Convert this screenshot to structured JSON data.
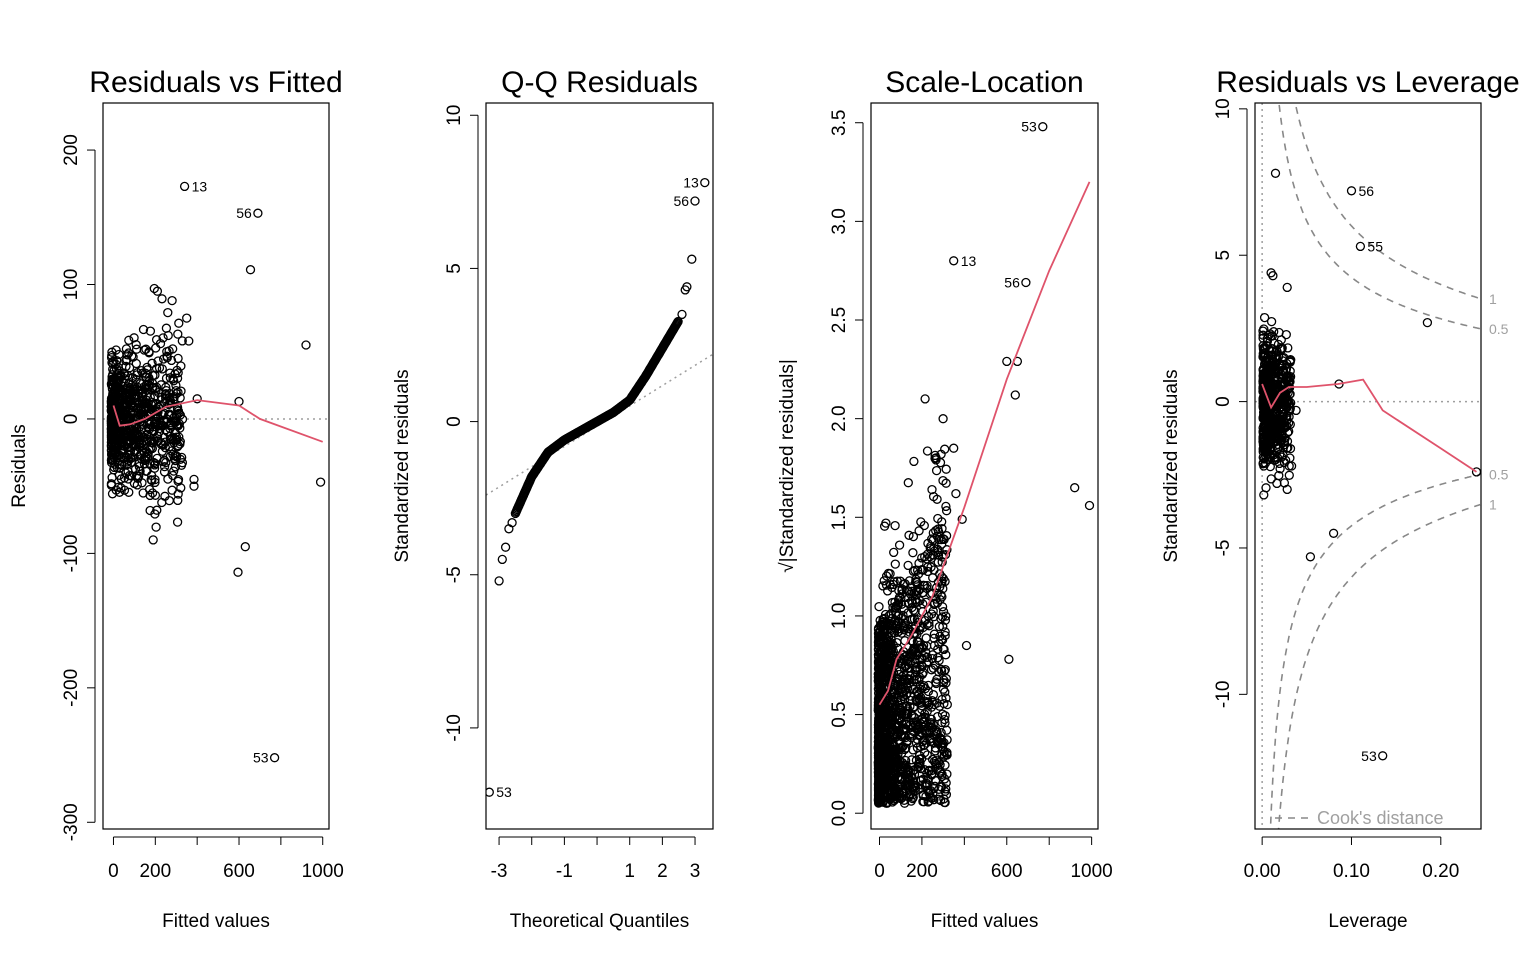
{
  "colors": {
    "points": "#000000",
    "smoother": "#DF536B",
    "reference": "#9E9E9E",
    "frame": "#000000"
  },
  "chart_data": [
    {
      "type": "scatter",
      "title": "Residuals vs Fitted",
      "xlabel": "Fitted values",
      "ylabel": "Residuals",
      "xlim": [
        -50,
        1030
      ],
      "ylim": [
        -305,
        235
      ],
      "xticks": [
        0,
        200,
        600,
        1000
      ],
      "yticks": [
        -300,
        -200,
        -100,
        0,
        100,
        200
      ],
      "reference_line": {
        "y": 0,
        "style": "dotted"
      },
      "labeled_points": [
        {
          "label": "13",
          "x": 340,
          "y": 173
        },
        {
          "label": "56",
          "x": 690,
          "y": 153
        },
        {
          "label": "53",
          "x": 770,
          "y": -252
        }
      ],
      "other_points": [
        {
          "x": 655,
          "y": 111
        },
        {
          "x": 920,
          "y": 55
        },
        {
          "x": 600,
          "y": 13
        },
        {
          "x": 990,
          "y": -47
        },
        {
          "x": 630,
          "y": -95
        },
        {
          "x": 595,
          "y": -114
        },
        {
          "x": 400,
          "y": 15
        },
        {
          "x": 385,
          "y": -45
        },
        {
          "x": 385,
          "y": -50
        },
        {
          "x": 350,
          "y": 75
        },
        {
          "x": 360,
          "y": 58
        },
        {
          "x": 280,
          "y": 88
        },
        {
          "x": 320,
          "y": -30
        },
        {
          "x": 310,
          "y": -5
        },
        {
          "x": 190,
          "y": -90
        },
        {
          "x": 210,
          "y": 95
        },
        {
          "x": 195,
          "y": 97
        }
      ],
      "cluster": {
        "x_range": [
          -10,
          330
        ],
        "y_range": [
          -90,
          100
        ],
        "count": 800
      },
      "smoother": [
        [
          0,
          10
        ],
        [
          30,
          -5
        ],
        [
          80,
          -4
        ],
        [
          150,
          0
        ],
        [
          250,
          9
        ],
        [
          400,
          14
        ],
        [
          600,
          10
        ],
        [
          700,
          0
        ],
        [
          1000,
          -17
        ]
      ]
    },
    {
      "type": "scatter",
      "title": "Q-Q Residuals",
      "xlabel": "Theoretical Quantiles",
      "ylabel": "Standardized residuals",
      "xlim": [
        -3.4,
        3.55
      ],
      "ylim": [
        -13.3,
        10.4
      ],
      "xticks": [
        -3,
        -1,
        1,
        2,
        3
      ],
      "yticks": [
        -10,
        -5,
        0,
        5,
        10
      ],
      "reference_line": {
        "points": [
          [
            -3.4,
            -2.4
          ],
          [
            3.55,
            2.2
          ]
        ],
        "style": "dotted"
      },
      "labeled_points": [
        {
          "label": "13",
          "x": 3.3,
          "y": 7.8
        },
        {
          "label": "56",
          "x": 3.0,
          "y": 7.2
        },
        {
          "label": "53",
          "x": -3.3,
          "y": -12.1
        }
      ],
      "other_points": [
        {
          "x": 2.9,
          "y": 5.3
        },
        {
          "x": 2.75,
          "y": 4.4
        },
        {
          "x": 2.7,
          "y": 4.3
        },
        {
          "x": 2.6,
          "y": 3.5
        },
        {
          "x": -3.0,
          "y": -5.2
        },
        {
          "x": -2.9,
          "y": -4.5
        },
        {
          "x": -2.8,
          "y": -4.1
        },
        {
          "x": -2.7,
          "y": -3.5
        },
        {
          "x": -2.6,
          "y": -3.3
        }
      ],
      "curve": [
        [
          -2.5,
          -3.0
        ],
        [
          -2.0,
          -1.8
        ],
        [
          -1.5,
          -1.0
        ],
        [
          -1.0,
          -0.6
        ],
        [
          -0.5,
          -0.3
        ],
        [
          0,
          0
        ],
        [
          0.5,
          0.3
        ],
        [
          1.0,
          0.7
        ],
        [
          1.5,
          1.5
        ],
        [
          2.0,
          2.4
        ],
        [
          2.5,
          3.3
        ]
      ]
    },
    {
      "type": "scatter",
      "title": "Scale-Location",
      "xlabel": "Fitted values",
      "ylabel": "√|Standardized residuals|",
      "xlim": [
        -40,
        1030
      ],
      "ylim": [
        -0.08,
        3.6
      ],
      "xticks": [
        0,
        200,
        600,
        1000
      ],
      "yticks": [
        0.0,
        0.5,
        1.0,
        1.5,
        2.0,
        2.5,
        3.0,
        3.5
      ],
      "labeled_points": [
        {
          "label": "53",
          "x": 770,
          "y": 3.48
        },
        {
          "label": "13",
          "x": 350,
          "y": 2.8
        },
        {
          "label": "56",
          "x": 690,
          "y": 2.69
        }
      ],
      "other_points": [
        {
          "x": 600,
          "y": 2.29
        },
        {
          "x": 650,
          "y": 2.29
        },
        {
          "x": 640,
          "y": 2.12
        },
        {
          "x": 920,
          "y": 1.65
        },
        {
          "x": 990,
          "y": 1.56
        },
        {
          "x": 410,
          "y": 0.85
        },
        {
          "x": 610,
          "y": 0.78
        },
        {
          "x": 350,
          "y": 1.85
        },
        {
          "x": 360,
          "y": 1.62
        },
        {
          "x": 390,
          "y": 1.49
        },
        {
          "x": 300,
          "y": 2.0
        },
        {
          "x": 215,
          "y": 2.1
        }
      ],
      "cluster": {
        "x_range": [
          -5,
          320
        ],
        "y_range": [
          0.02,
          1.9
        ],
        "count": 1500
      },
      "smoother": [
        [
          0,
          0.55
        ],
        [
          40,
          0.62
        ],
        [
          80,
          0.78
        ],
        [
          150,
          0.9
        ],
        [
          250,
          1.1
        ],
        [
          400,
          1.55
        ],
        [
          600,
          2.2
        ],
        [
          800,
          2.75
        ],
        [
          990,
          3.2
        ]
      ]
    },
    {
      "type": "scatter",
      "title": "Residuals vs Leverage",
      "xlabel": "Leverage",
      "ylabel": "Standardized residuals",
      "xlim": [
        -0.008,
        0.245
      ],
      "ylim": [
        -14.6,
        10.2
      ],
      "xticks": [
        0.0,
        0.1,
        0.2
      ],
      "xtick_labels": [
        "0.00",
        "0.10",
        "0.20"
      ],
      "yticks": [
        -10,
        -5,
        0,
        5,
        10
      ],
      "reference_line": {
        "y": 0,
        "style": "dotted"
      },
      "labeled_points": [
        {
          "label": "56",
          "x": 0.1,
          "y": 7.2
        },
        {
          "label": "55",
          "x": 0.11,
          "y": 5.3
        },
        {
          "label": "53",
          "x": 0.135,
          "y": -12.1
        }
      ],
      "other_points": [
        {
          "x": 0.015,
          "y": 7.8
        },
        {
          "x": 0.185,
          "y": 2.7
        },
        {
          "x": 0.24,
          "y": -2.4
        },
        {
          "x": 0.08,
          "y": -4.5
        },
        {
          "x": 0.054,
          "y": -5.3
        },
        {
          "x": 0.086,
          "y": 0.6
        },
        {
          "x": 0.038,
          "y": -0.3
        },
        {
          "x": 0.028,
          "y": 3.9
        },
        {
          "x": 0.028,
          "y": -3.0
        },
        {
          "x": 0.033,
          "y": -2.2
        },
        {
          "x": 0.01,
          "y": 4.4
        },
        {
          "x": 0.012,
          "y": 4.3
        }
      ],
      "cluster": {
        "x_range": [
          0.001,
          0.032
        ],
        "y_range": [
          -4.0,
          3.6
        ],
        "count": 600
      },
      "smoother": [
        [
          0.0,
          0.6
        ],
        [
          0.01,
          -0.2
        ],
        [
          0.02,
          0.3
        ],
        [
          0.03,
          0.5
        ],
        [
          0.05,
          0.5
        ],
        [
          0.085,
          0.6
        ],
        [
          0.113,
          0.75
        ],
        [
          0.135,
          -0.3
        ],
        [
          0.2,
          -1.6
        ],
        [
          0.24,
          -2.4
        ]
      ],
      "cooks_contours": [
        {
          "label": "1",
          "level": 1.0
        },
        {
          "label": "0.5",
          "level": 0.5
        }
      ],
      "cooks_legend": "Cook's distance",
      "cooks_params": 4
    }
  ]
}
